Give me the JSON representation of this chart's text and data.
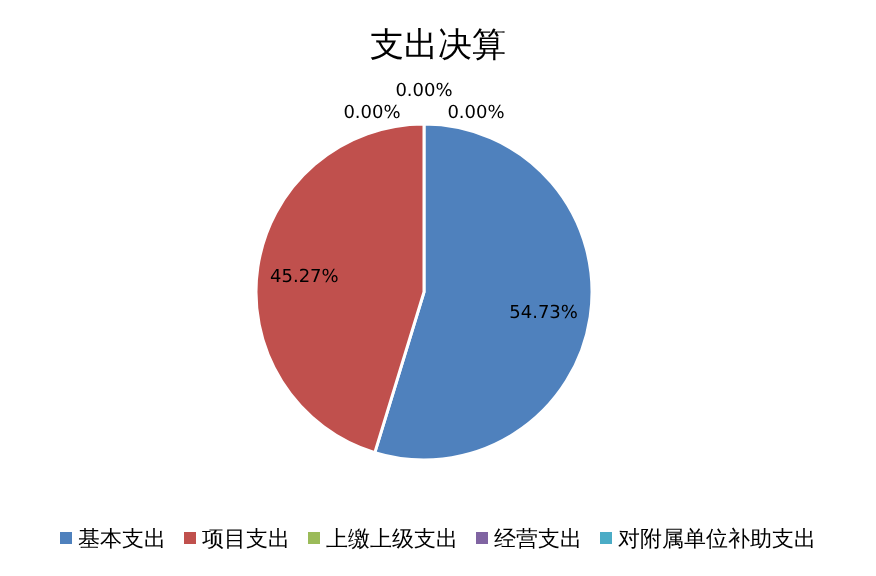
{
  "chart_data": {
    "type": "pie",
    "title": "支出决算",
    "categories": [
      "基本支出",
      "项目支出",
      "上缴上级支出",
      "经营支出",
      "对附属单位补助支出"
    ],
    "values": [
      54.73,
      45.27,
      0,
      0,
      0
    ],
    "colors": [
      "#4f81bd",
      "#c0504d",
      "#9bbb59",
      "#8064a2",
      "#4bacc6"
    ],
    "value_labels": [
      "54.73%",
      "45.27%",
      "0.00%",
      "0.00%",
      "0.00%"
    ],
    "legend": "bottom"
  }
}
